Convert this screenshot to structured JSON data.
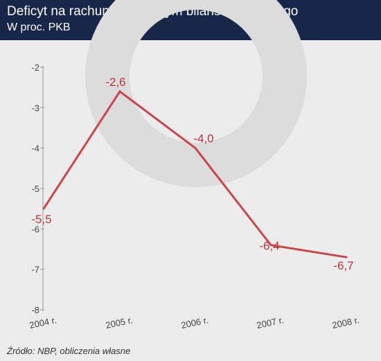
{
  "header": {
    "title": "Deficyt na rachunku bieżącym bilansu płatniczego",
    "subtitle": "W proc. PKB"
  },
  "source": "Źródło: NBP, obliczenia własne",
  "colors": {
    "header_bg": "#18264a",
    "line": "#c9444b",
    "background": "#ececec",
    "watermark": "#dcdcdc"
  },
  "chart_data": {
    "type": "line",
    "categories": [
      "2004 r.",
      "2005 r.",
      "2006 r.",
      "2007 r.",
      "2008 r."
    ],
    "series": [
      {
        "values": [
          -5.5,
          -2.6,
          -4.0,
          -6.4,
          -6.7
        ]
      }
    ],
    "data_labels": [
      "-5,5",
      "-2,6",
      "-4,0",
      "-6,4",
      "-6,7"
    ],
    "y_ticks": [
      "-2",
      "-3",
      "-4",
      "-5",
      "-6",
      "-7",
      "-8"
    ],
    "y_tick_values": [
      -2,
      -3,
      -4,
      -5,
      -6,
      -7,
      -8
    ],
    "ylim": [
      -8,
      -2
    ],
    "grid": false,
    "title": "Deficyt na rachunku bieżącym bilansu płatniczego",
    "subtitle": "W proc. PKB"
  }
}
